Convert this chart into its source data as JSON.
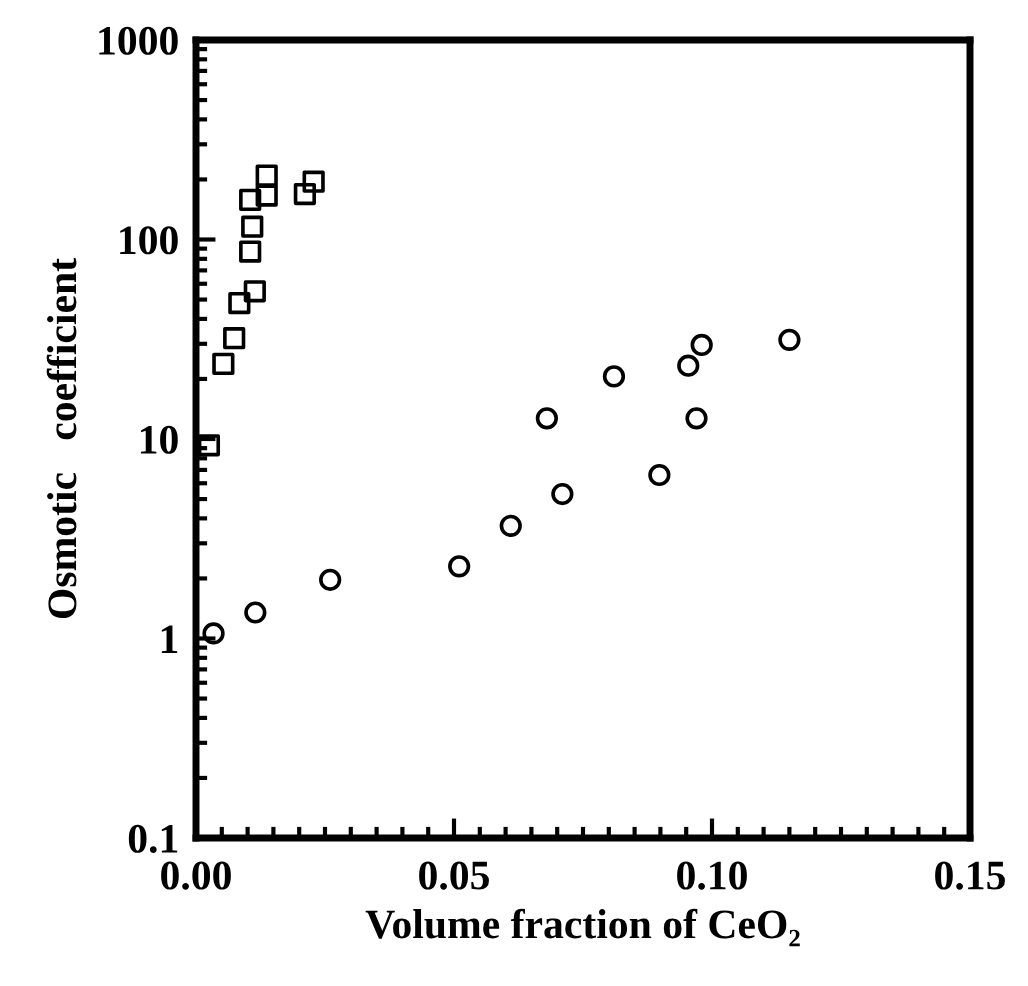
{
  "chart_data": {
    "type": "scatter",
    "xlabel": "Volume fraction of CeO₂",
    "ylabel": "Osmotic   coefficient",
    "log": "y",
    "xlim": [
      0,
      0.15
    ],
    "ylim": [
      0.1,
      1000
    ],
    "xticks": [
      {
        "value": 0,
        "label": "0.00"
      },
      {
        "value": 0.05,
        "label": "0.05"
      },
      {
        "value": 0.1,
        "label": "0.10"
      },
      {
        "value": 0.15,
        "label": "0.15"
      }
    ],
    "yticks": [
      0.1,
      1,
      10,
      100,
      1000
    ],
    "grid": false,
    "legend": false,
    "series": [
      {
        "color": "#000000",
        "marker": "square",
        "x": [
          0.0025,
          0.0053,
          0.0074,
          0.0084,
          0.0114,
          0.0105,
          0.0109,
          0.0105,
          0.0137,
          0.0137,
          0.0211,
          0.0228
        ],
        "values": [
          9.3,
          23.8,
          32,
          48,
          55,
          87,
          116,
          158,
          166,
          209,
          169,
          195
        ]
      },
      {
        "color": "#000000",
        "marker": "circle",
        "x": [
          0.0034,
          0.0115,
          0.026,
          0.051,
          0.061,
          0.071,
          0.068,
          0.081,
          0.0898,
          0.0954,
          0.098,
          0.097,
          0.115
        ],
        "values": [
          1.06,
          1.35,
          1.97,
          2.3,
          3.67,
          5.3,
          12.7,
          20.6,
          6.6,
          23.3,
          29.6,
          12.7,
          31.4
        ]
      }
    ]
  }
}
